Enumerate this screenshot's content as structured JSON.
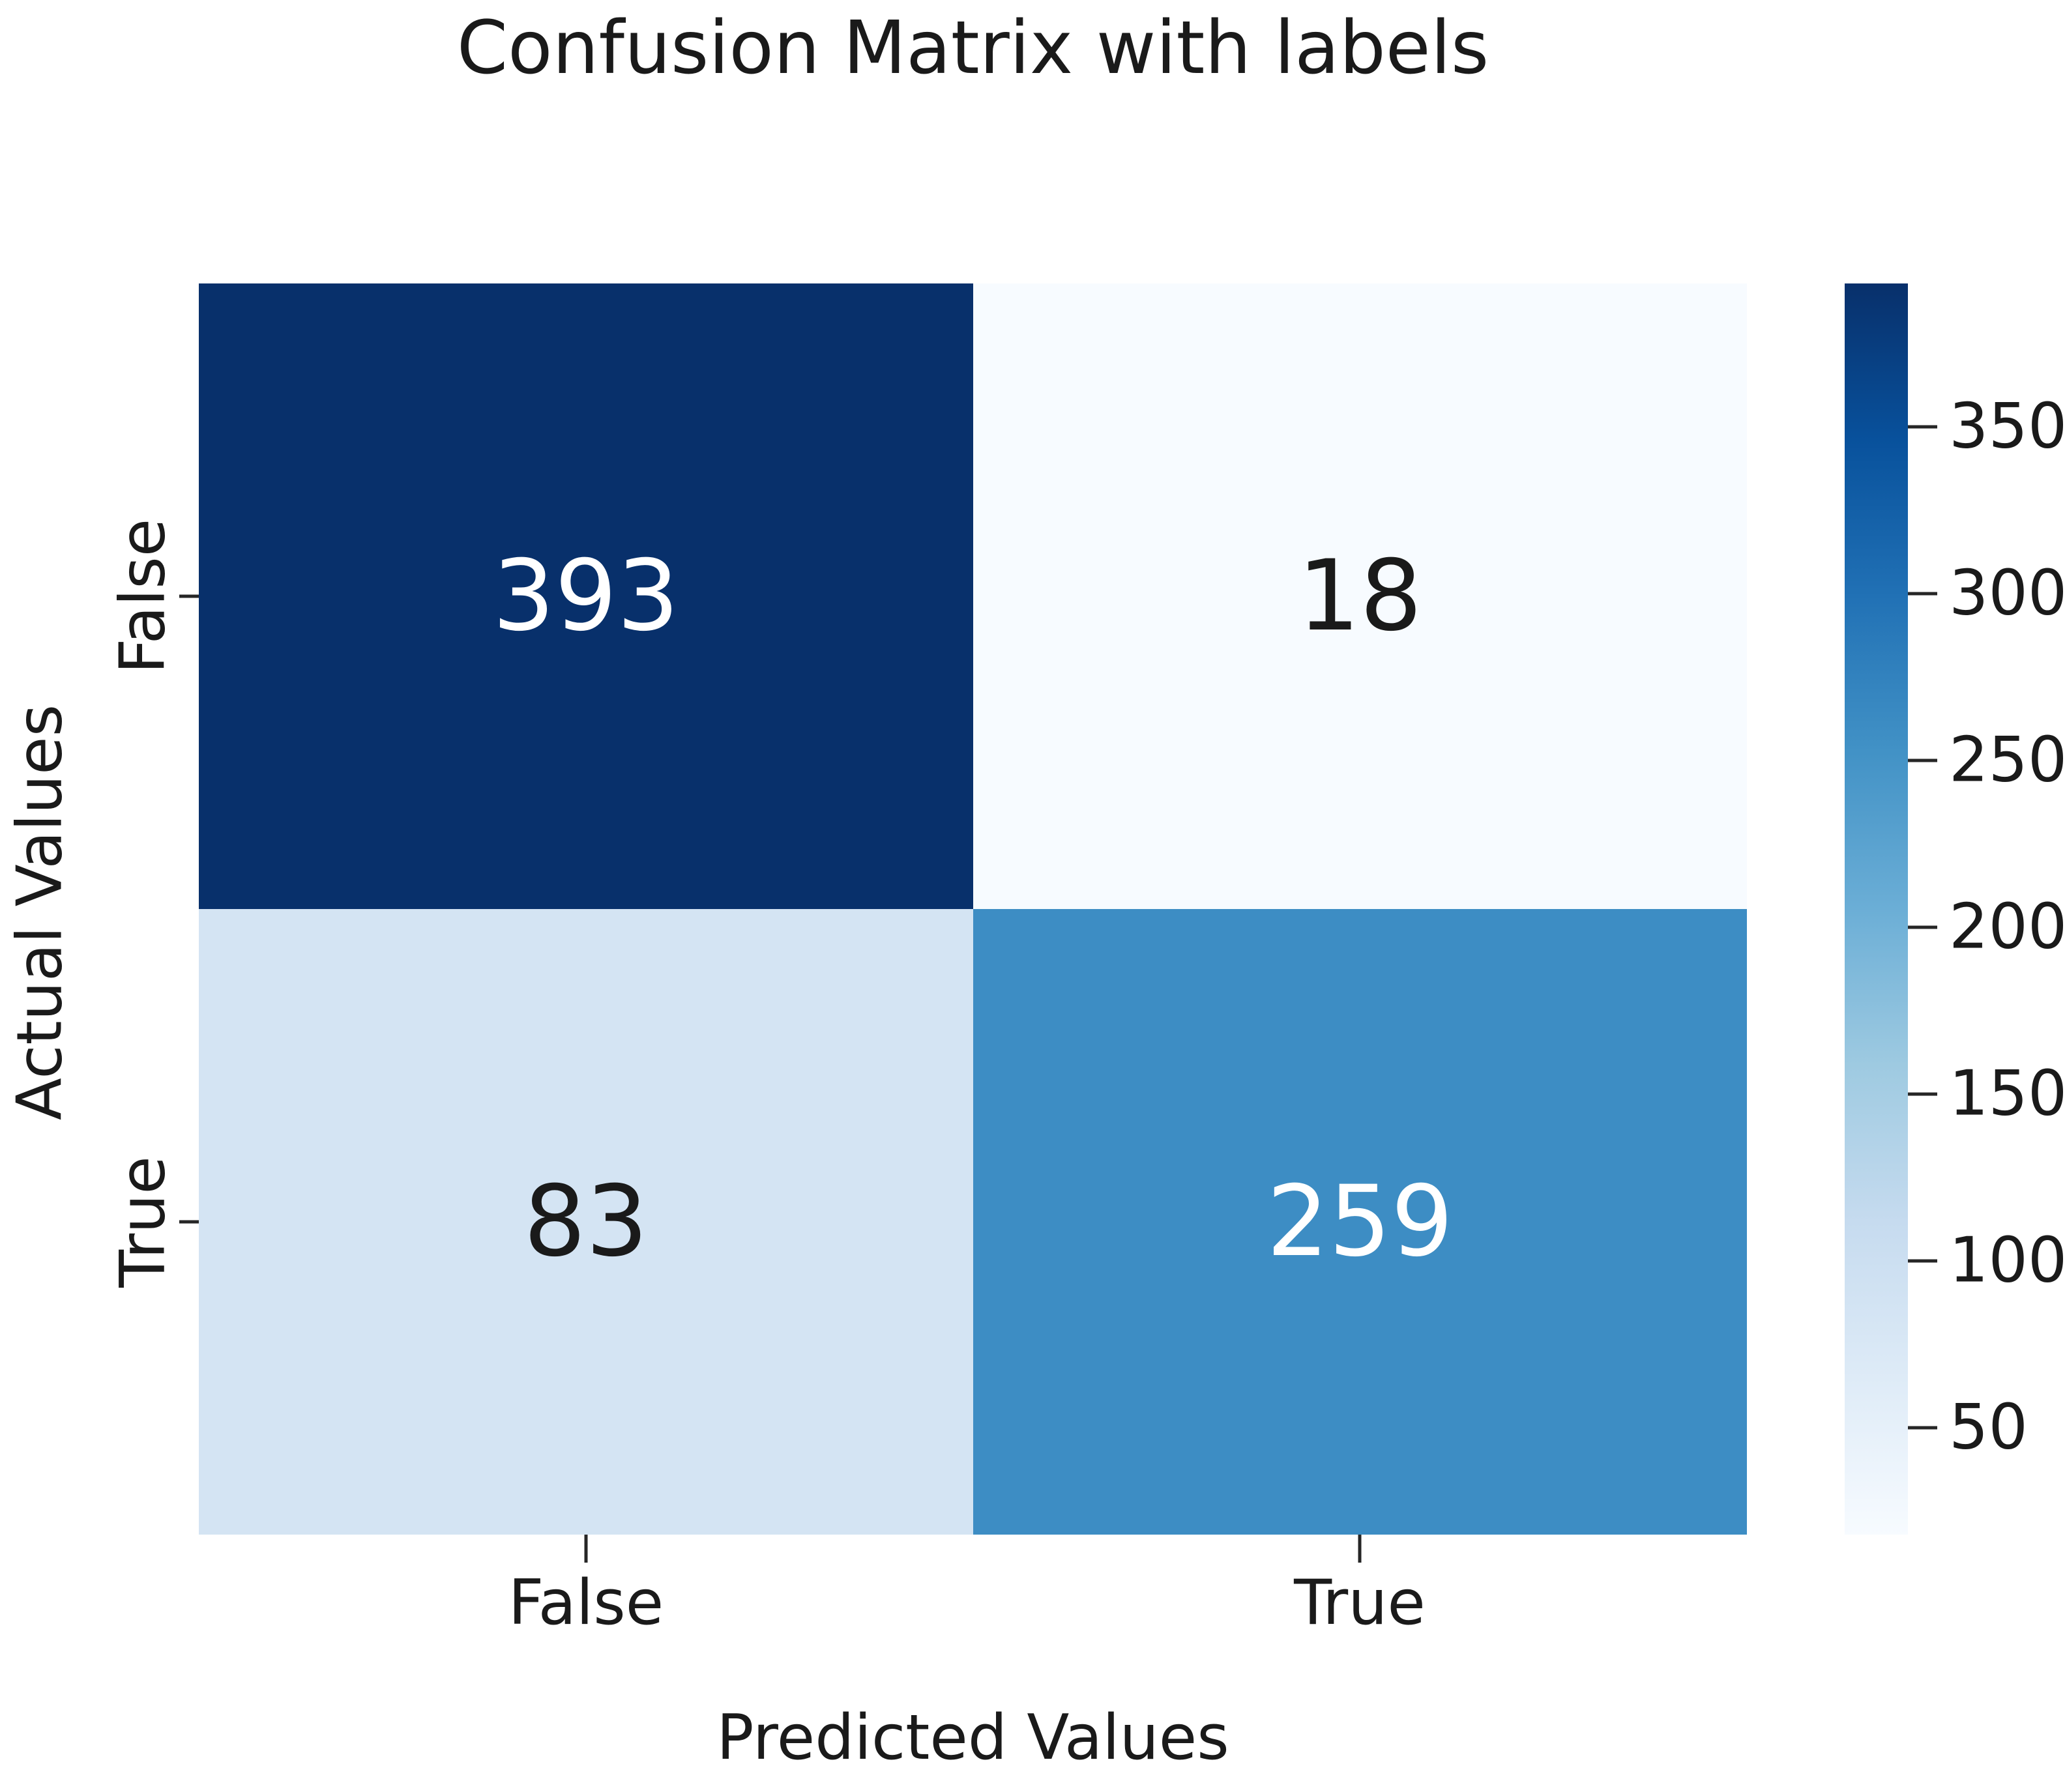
{
  "chart_data": {
    "type": "heatmap",
    "title": "Confusion Matrix with labels",
    "xlabel": "Predicted Values",
    "ylabel": "Actual Values",
    "x_categories": [
      "False",
      "True"
    ],
    "y_categories": [
      "False",
      "True"
    ],
    "values": [
      [
        393,
        18
      ],
      [
        83,
        259
      ]
    ],
    "colormap": "Blues",
    "vmin": 18,
    "vmax": 393,
    "colorbar_ticks": [
      350,
      300,
      250,
      200,
      150,
      100,
      50
    ],
    "cell_colors": [
      [
        "#08306b",
        "#f7fbff"
      ],
      [
        "#d4e4f3",
        "#3d8dc4"
      ]
    ],
    "cell_text_colors": [
      [
        "#ffffff",
        "#1a1a1a"
      ],
      [
        "#1a1a1a",
        "#ffffff"
      ]
    ],
    "grid": false,
    "legend_position": "right-colorbar"
  },
  "colors": {
    "background": "#ffffff",
    "text": "#1a1a1a",
    "tick_mark": "#262626",
    "blues_scale_low_to_high": [
      "#f7fbff",
      "#deebf7",
      "#c6dbef",
      "#9ecae1",
      "#6baed6",
      "#4292c6",
      "#2171b5",
      "#08519c",
      "#08306b"
    ]
  }
}
